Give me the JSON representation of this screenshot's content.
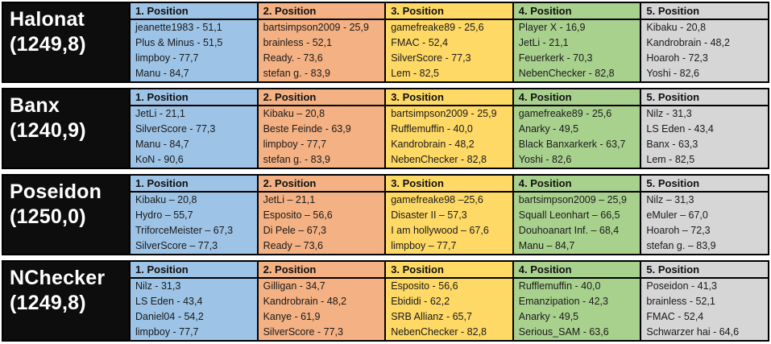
{
  "headers": [
    "1. Position",
    "2. Position",
    "3. Position",
    "4. Position",
    "5. Position"
  ],
  "colors": {
    "column_fills": [
      "#9DC3E6",
      "#F4B183",
      "#FFD966",
      "#A9D18E",
      "#D6D6D6"
    ],
    "label_background": "#0D0D0D",
    "label_text": "#FFFFFF",
    "border": "#000000",
    "page_background": "#FFFFFF"
  },
  "teams": [
    {
      "name": "Halonat",
      "score": "(1249,8)",
      "positions": [
        [
          "jeanette1983 - 51,1",
          "Plus & Minus - 51,5",
          "limpboy - 77,7",
          "Manu - 84,7"
        ],
        [
          "bartsimpson2009 - 25,9",
          "brainless - 52,1",
          "Ready. - 73,6",
          "stefan g. - 83,9"
        ],
        [
          "gamefreake89 - 25,6",
          "FMAC - 52,4",
          "SilverScore - 77,3",
          "Lem - 82,5"
        ],
        [
          "Player X - 16,9",
          "JetLi - 21,1",
          "Feuerkerk - 70,3",
          "NebenChecker - 82,8"
        ],
        [
          "Kibaku - 20,8",
          "Kandrobrain - 48,2",
          "Hoaroh - 72,3",
          "Yoshi - 82,6"
        ]
      ]
    },
    {
      "name": "Banx",
      "score": "(1240,9)",
      "positions": [
        [
          "JetLi - 21,1",
          "SilverScore - 77,3",
          "Manu - 84,7",
          "KoN - 90,6"
        ],
        [
          "Kibaku – 20,8",
          "Beste Feinde - 63,9",
          "limpboy - 77,7",
          "stefan g. - 83,9"
        ],
        [
          "bartsimpson2009 - 25,9",
          "Rufflemuffin - 40,0",
          "Kandrobrain - 48,2",
          "NebenChecker - 82,8"
        ],
        [
          "gamefreake89 - 25,6",
          "Anarky - 49,5",
          "Black Banxarkerk - 63,7",
          "Yoshi - 82,6"
        ],
        [
          "Nilz - 31,3",
          "LS Eden - 43,4",
          "Banx - 63,3",
          "Lem - 82,5"
        ]
      ]
    },
    {
      "name": "Poseidon",
      "score": "(1250,0)",
      "positions": [
        [
          "Kibaku – 20,8",
          "Hydro – 55,7",
          "TriforceMeister – 67,3",
          "SilverScore – 77,3"
        ],
        [
          "JetLi – 21,1",
          "Esposito – 56,6",
          "Di Pele – 67,3",
          "Ready – 73,6"
        ],
        [
          "gamefreake98 –25,6",
          "Disaster II – 57,3",
          "I am hollywood – 67,6",
          "limpboy – 77,7"
        ],
        [
          "bartsimpson2009 – 25,9",
          "Squall Leonhart – 66,5",
          "Douhoanart Inf. – 68,4",
          "Manu – 84,7"
        ],
        [
          "Nilz – 31,3",
          "eMuler – 67,0",
          "Hoaroh – 72,3",
          "stefan g. – 83,9"
        ]
      ]
    },
    {
      "name": "NChecker",
      "score": "(1249,8)",
      "positions": [
        [
          "Nilz - 31,3",
          "LS Eden - 43,4",
          "Daniel04 - 54,2",
          "limpboy - 77,7"
        ],
        [
          "Gilligan - 34,7",
          "Kandrobrain - 48,2",
          "Kanye - 61,9",
          "SilverScore - 77,3"
        ],
        [
          "Esposito - 56,6",
          "Ebididi - 62,2",
          "SRB Allianz - 65,7",
          "NebenChecker - 82,8"
        ],
        [
          "Rufflemuffin - 40,0",
          "Emanzipation - 42,3",
          "Anarky - 49,5",
          "Serious_SAM - 63,6"
        ],
        [
          "Poseidon - 41,3",
          "brainless - 52,1",
          "FMAC - 52,4",
          "Schwarzer hai - 64,6"
        ]
      ]
    }
  ]
}
